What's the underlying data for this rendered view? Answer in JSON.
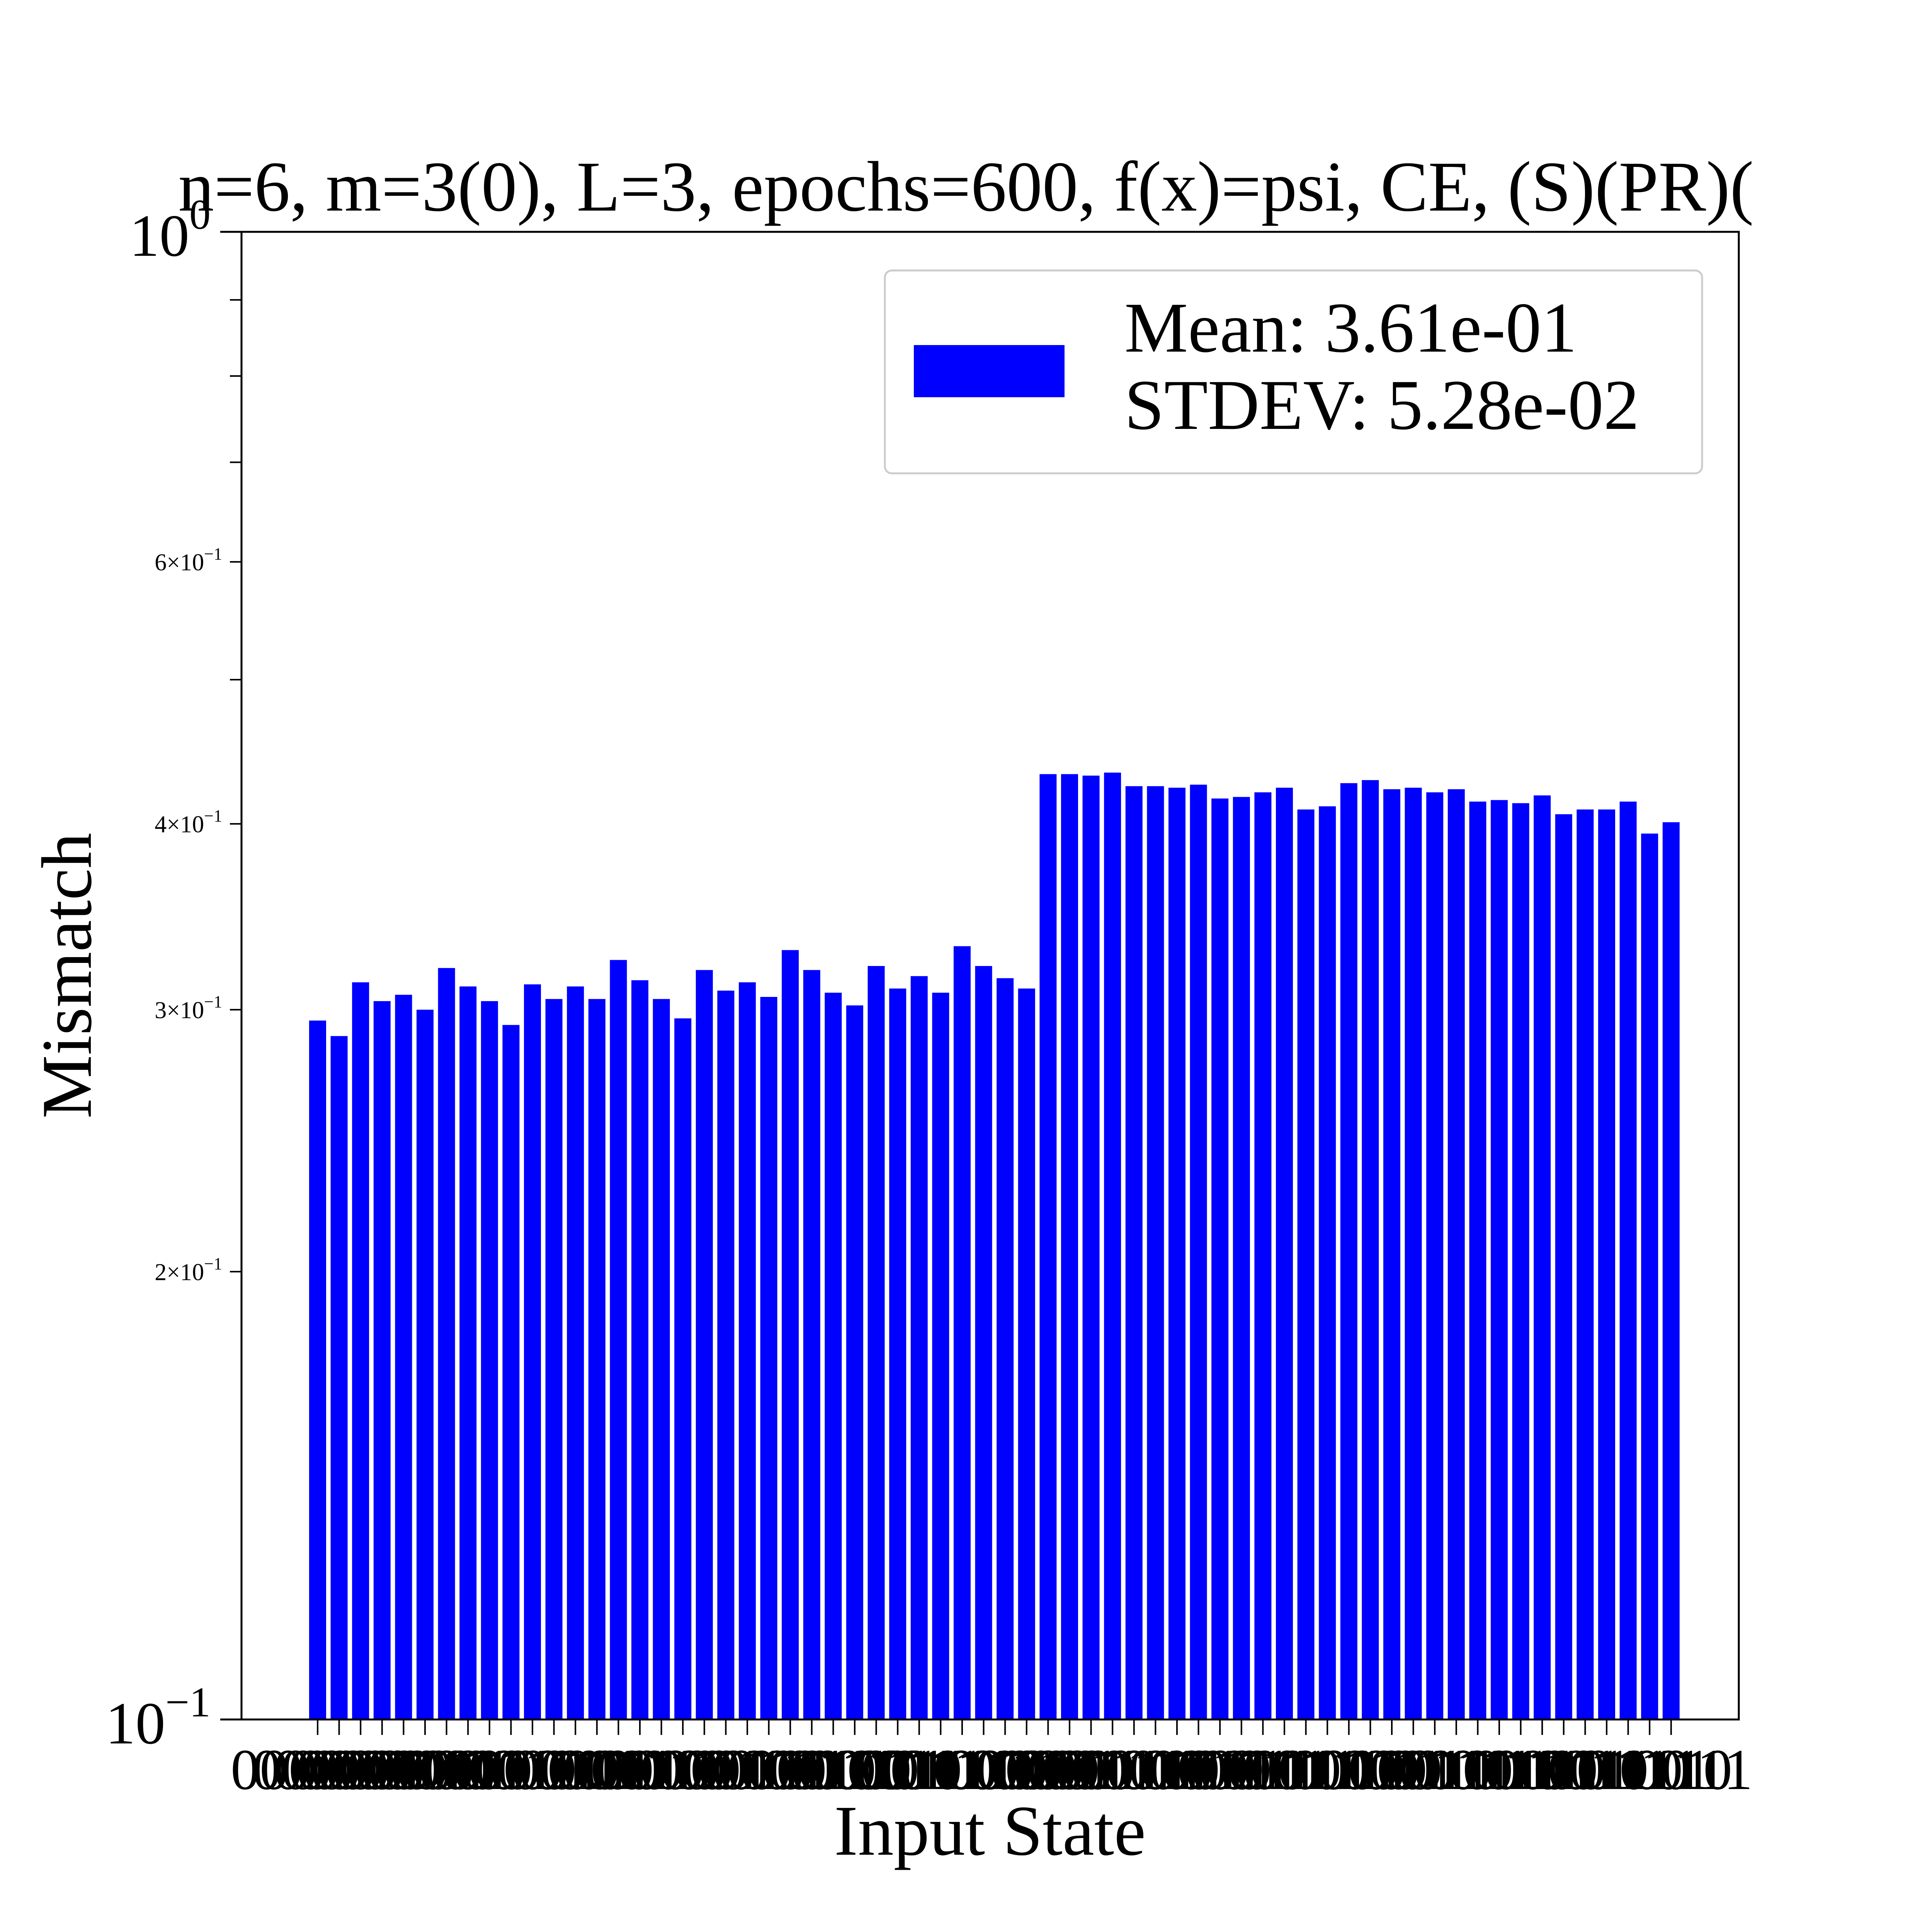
{
  "chart_data": {
    "type": "bar",
    "title": "n=6, m=3(0), L=3, epochs=600, f(x)=psi, CE, (S)(PR)(",
    "xlabel": "Input State",
    "ylabel": "Mismatch",
    "yscale": "log",
    "ylim": [
      0.1,
      1.0
    ],
    "grid": false,
    "legend_position": "top-right",
    "bar_color": "#0000ff",
    "legend": {
      "line1": "Mean: 3.61e-01",
      "line2": "STDEV: 5.28e-02"
    },
    "y_major_ticks": [
      {
        "value": 0.1,
        "base": "10",
        "exp": "−1"
      },
      {
        "value": 1.0,
        "base": "10",
        "exp": "0"
      }
    ],
    "y_minor_ticks": [
      {
        "value": 0.2,
        "mant": "2",
        "exp": "−1",
        "labeled": true
      },
      {
        "value": 0.3,
        "mant": "3",
        "exp": "−1",
        "labeled": true
      },
      {
        "value": 0.4,
        "mant": "4",
        "exp": "−1",
        "labeled": true
      },
      {
        "value": 0.5,
        "labeled": false
      },
      {
        "value": 0.6,
        "mant": "6",
        "exp": "−1",
        "labeled": true
      },
      {
        "value": 0.7,
        "labeled": false
      },
      {
        "value": 0.8,
        "labeled": false
      },
      {
        "value": 0.9,
        "labeled": false
      }
    ],
    "categories": [
      "000000",
      "000001",
      "000010",
      "000011",
      "000100",
      "000101",
      "000110",
      "000111",
      "001000",
      "001001",
      "001010",
      "001011",
      "001100",
      "001101",
      "001110",
      "001111",
      "010000",
      "010001",
      "010010",
      "010011",
      "010100",
      "010101",
      "010110",
      "010111",
      "011000",
      "011001",
      "011010",
      "011011",
      "011100",
      "011101",
      "011110",
      "011111",
      "100000",
      "100001",
      "100010",
      "100011",
      "100100",
      "100101",
      "100110",
      "100111",
      "101000",
      "101001",
      "101010",
      "101011",
      "101100",
      "101101",
      "101110",
      "101111",
      "110000",
      "110001",
      "110010",
      "110011",
      "110100",
      "110101",
      "110110",
      "110111",
      "111000",
      "111001",
      "111010",
      "111011",
      "111100",
      "111101",
      "111110",
      "111111"
    ],
    "values": [
      0.295,
      0.288,
      0.313,
      0.304,
      0.307,
      0.3,
      0.32,
      0.311,
      0.304,
      0.293,
      0.312,
      0.305,
      0.311,
      0.305,
      0.324,
      0.314,
      0.305,
      0.296,
      0.319,
      0.309,
      0.313,
      0.306,
      0.329,
      0.319,
      0.308,
      0.302,
      0.321,
      0.31,
      0.316,
      0.308,
      0.331,
      0.321,
      0.315,
      0.31,
      0.432,
      0.432,
      0.431,
      0.433,
      0.424,
      0.424,
      0.423,
      0.425,
      0.416,
      0.417,
      0.42,
      0.423,
      0.409,
      0.411,
      0.426,
      0.428,
      0.422,
      0.423,
      0.42,
      0.422,
      0.414,
      0.415,
      0.413,
      0.418,
      0.406,
      0.409,
      0.409,
      0.414,
      0.394,
      0.401
    ]
  }
}
